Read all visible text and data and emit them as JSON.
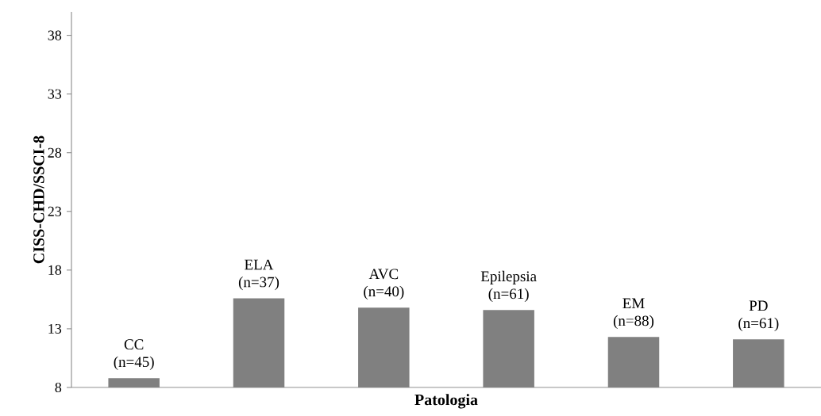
{
  "chart_data": {
    "type": "bar",
    "xlabel": "Patologia",
    "ylabel": "CISS-CHD/SSCI-8",
    "categories": [
      "CC (n=45)",
      "ELA (n=37)",
      "AVC (n=40)",
      "Epilepsia (n=61)",
      "EM (n=88)",
      "PD (n=61)"
    ],
    "values": [
      8.8,
      15.6,
      14.8,
      14.6,
      12.3,
      12.1
    ],
    "color": "#808080",
    "ylim": [
      8,
      40
    ],
    "yticks": [
      8,
      13,
      18,
      23,
      28,
      33,
      38
    ]
  }
}
